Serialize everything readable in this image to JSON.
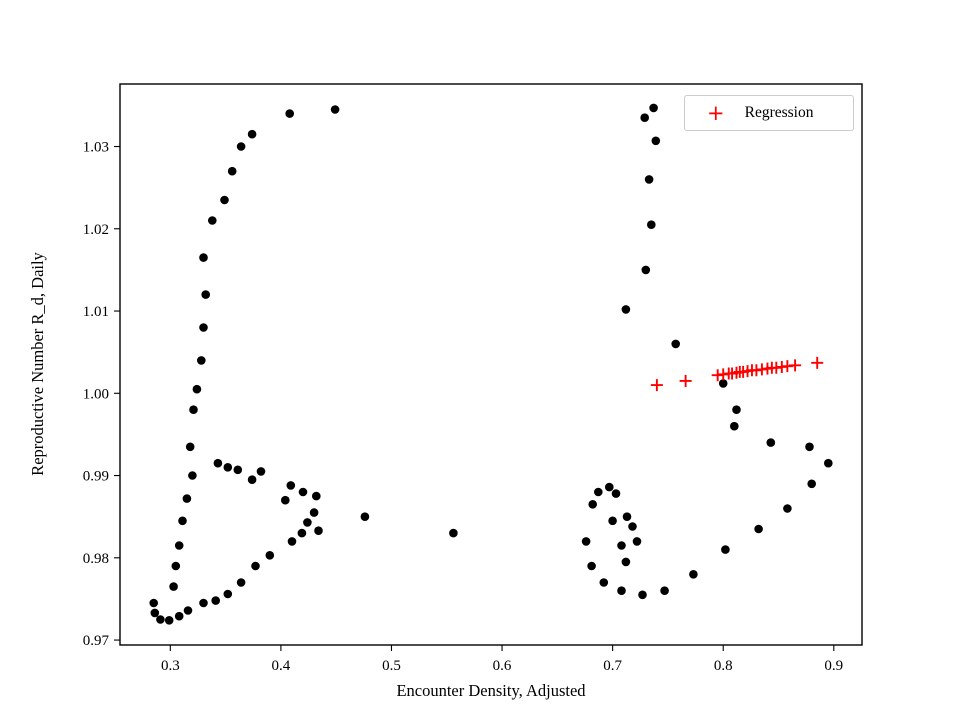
{
  "chart_data": {
    "type": "scatter",
    "title": "",
    "xlabel": "Encounter Density, Adjusted",
    "ylabel": "Reproductive Number R_d, Daily",
    "xlim": [
      0.2545,
      0.9255
    ],
    "ylim": [
      0.9694,
      1.0376
    ],
    "xticks": [
      0.3,
      0.4,
      0.5,
      0.6,
      0.7,
      0.8,
      0.9
    ],
    "xtick_labels": [
      "0.3",
      "0.4",
      "0.5",
      "0.6",
      "0.7",
      "0.8",
      "0.9"
    ],
    "yticks": [
      0.97,
      0.98,
      0.99,
      1.0,
      1.01,
      1.02,
      1.03
    ],
    "ytick_labels": [
      "0.97",
      "0.98",
      "0.99",
      "1.00",
      "1.01",
      "1.02",
      "1.03"
    ],
    "grid": false,
    "background": "#ffffff",
    "legend_position": "upper right",
    "series": [
      {
        "name": "",
        "marker": "circle",
        "color": "#000000",
        "points": [
          [
            0.285,
            0.9745
          ],
          [
            0.286,
            0.9733
          ],
          [
            0.291,
            0.9725
          ],
          [
            0.299,
            0.9724
          ],
          [
            0.308,
            0.9729
          ],
          [
            0.316,
            0.9736
          ],
          [
            0.303,
            0.9765
          ],
          [
            0.305,
            0.979
          ],
          [
            0.308,
            0.9815
          ],
          [
            0.311,
            0.9845
          ],
          [
            0.315,
            0.9872
          ],
          [
            0.32,
            0.99
          ],
          [
            0.318,
            0.9935
          ],
          [
            0.321,
            0.998
          ],
          [
            0.324,
            1.0005
          ],
          [
            0.328,
            1.004
          ],
          [
            0.33,
            1.008
          ],
          [
            0.332,
            1.012
          ],
          [
            0.33,
            1.0165
          ],
          [
            0.338,
            1.021
          ],
          [
            0.349,
            1.0235
          ],
          [
            0.356,
            1.027
          ],
          [
            0.364,
            1.03
          ],
          [
            0.374,
            1.0315
          ],
          [
            0.408,
            1.034
          ],
          [
            0.449,
            1.0345
          ],
          [
            0.343,
            0.9915
          ],
          [
            0.352,
            0.991
          ],
          [
            0.361,
            0.9907
          ],
          [
            0.374,
            0.9895
          ],
          [
            0.382,
            0.9905
          ],
          [
            0.404,
            0.987
          ],
          [
            0.409,
            0.9888
          ],
          [
            0.42,
            0.988
          ],
          [
            0.432,
            0.9875
          ],
          [
            0.43,
            0.9855
          ],
          [
            0.424,
            0.9843
          ],
          [
            0.434,
            0.9833
          ],
          [
            0.419,
            0.983
          ],
          [
            0.476,
            0.985
          ],
          [
            0.556,
            0.983
          ],
          [
            0.33,
            0.9745
          ],
          [
            0.341,
            0.9748
          ],
          [
            0.352,
            0.9756
          ],
          [
            0.364,
            0.977
          ],
          [
            0.377,
            0.979
          ],
          [
            0.39,
            0.9803
          ],
          [
            0.41,
            0.982
          ],
          [
            0.729,
            1.0335
          ],
          [
            0.737,
            1.0347
          ],
          [
            0.739,
            1.0307
          ],
          [
            0.733,
            1.026
          ],
          [
            0.735,
            1.0205
          ],
          [
            0.73,
            1.015
          ],
          [
            0.712,
            1.0102
          ],
          [
            0.757,
            1.006
          ],
          [
            0.8,
            1.0012
          ],
          [
            0.812,
            0.998
          ],
          [
            0.81,
            0.996
          ],
          [
            0.843,
            0.994
          ],
          [
            0.878,
            0.9935
          ],
          [
            0.895,
            0.9915
          ],
          [
            0.88,
            0.989
          ],
          [
            0.858,
            0.986
          ],
          [
            0.832,
            0.9835
          ],
          [
            0.802,
            0.981
          ],
          [
            0.773,
            0.978
          ],
          [
            0.747,
            0.976
          ],
          [
            0.727,
            0.9755
          ],
          [
            0.708,
            0.976
          ],
          [
            0.692,
            0.977
          ],
          [
            0.681,
            0.979
          ],
          [
            0.676,
            0.982
          ],
          [
            0.682,
            0.9865
          ],
          [
            0.687,
            0.988
          ],
          [
            0.697,
            0.9886
          ],
          [
            0.703,
            0.9878
          ],
          [
            0.7,
            0.9845
          ],
          [
            0.708,
            0.9815
          ],
          [
            0.713,
            0.985
          ],
          [
            0.718,
            0.9838
          ],
          [
            0.722,
            0.982
          ],
          [
            0.712,
            0.9795
          ]
        ]
      },
      {
        "name": "Regression",
        "marker": "plus",
        "color": "#ff0000",
        "points": [
          [
            0.74,
            1.001
          ],
          [
            0.766,
            1.0015
          ],
          [
            0.795,
            1.0022
          ],
          [
            0.8,
            1.0023
          ],
          [
            0.805,
            1.0024
          ],
          [
            0.808,
            1.0024
          ],
          [
            0.812,
            1.0025
          ],
          [
            0.815,
            1.0026
          ],
          [
            0.818,
            1.0026
          ],
          [
            0.822,
            1.0027
          ],
          [
            0.826,
            1.0028
          ],
          [
            0.83,
            1.0028
          ],
          [
            0.835,
            1.0029
          ],
          [
            0.84,
            1.003
          ],
          [
            0.844,
            1.0031
          ],
          [
            0.848,
            1.0031
          ],
          [
            0.853,
            1.0032
          ],
          [
            0.858,
            1.0033
          ],
          [
            0.865,
            1.0034
          ],
          [
            0.885,
            1.0037
          ]
        ]
      }
    ],
    "legend": {
      "entries": [
        "Regression"
      ],
      "marker": "plus",
      "marker_color": "#ff0000",
      "marker_glyph": "+"
    }
  }
}
